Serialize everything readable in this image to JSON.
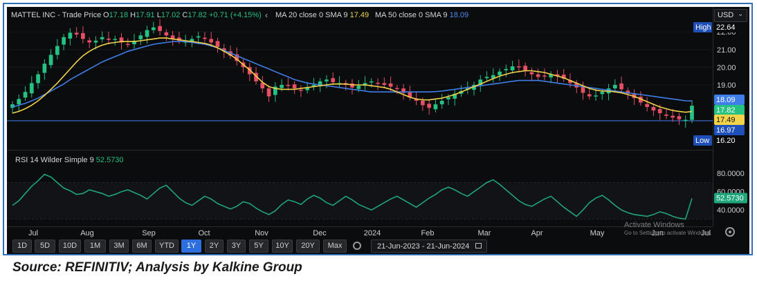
{
  "header": {
    "symbol": "MATTEL INC",
    "chart_label": "Trade Price",
    "ohlc": [
      {
        "key": "O",
        "value": "17.18"
      },
      {
        "key": "H",
        "value": "17.91"
      },
      {
        "key": "L",
        "value": "17.02"
      },
      {
        "key": "C",
        "value": "17.82"
      }
    ],
    "change": "+0.71 (+4.15%)",
    "ma20_label": "MA 20 close 0 SMA 9",
    "ma20_value": "17.49",
    "ma50_label": "MA 50 close 0 SMA 9",
    "ma50_value": "18.09",
    "currency": "USD"
  },
  "rsi_header": {
    "label": "RSI 14 Wilder Simple 9",
    "value": "52.5730"
  },
  "range_buttons": [
    "1D",
    "5D",
    "10D",
    "1M",
    "3M",
    "6M",
    "YTD",
    "1Y",
    "2Y",
    "3Y",
    "5Y",
    "10Y",
    "20Y",
    "Max"
  ],
  "active_range": "1Y",
  "date_range": "21-Jun-2023 - 21-Jun-2024",
  "watermark": {
    "line1": "Activate Windows",
    "line2": "Go to Settings to activate Windows."
  },
  "footer": "Source: REFINITIV; Analysis by Kalkine Group",
  "colors": {
    "bg": "#0b0c0e",
    "up": "#26c281",
    "down": "#e84f63",
    "ma20": "#f2d34a",
    "ma50": "#3f7ee8",
    "rsi": "#1fa67a",
    "active": "#2e6fe0"
  },
  "chart_data": [
    {
      "type": "candlestick",
      "title": "MATTEL INC - Trade Price",
      "x_labels": [
        "Jul",
        "Aug",
        "Sep",
        "Oct",
        "Nov",
        "Dec",
        "2024",
        "Feb",
        "Mar",
        "Apr",
        "May",
        "Jun",
        "Jul"
      ],
      "y_ticks": [
        22.0,
        21.0,
        20.0,
        19.0
      ],
      "ylim": [
        15.6,
        23.1
      ],
      "high": 22.64,
      "low": 16.2,
      "horizontal_level": 16.97,
      "price_tags": {
        "high": "22.64",
        "ma50": "18.09",
        "close": "17.82",
        "ma20": "17.49",
        "level": "16.97",
        "low": "16.20"
      },
      "close_series": [
        17.9,
        18.2,
        18.6,
        19.1,
        19.6,
        20.2,
        20.7,
        21.2,
        21.7,
        21.95,
        21.85,
        21.6,
        21.4,
        21.5,
        21.7,
        21.55,
        21.6,
        21.4,
        21.3,
        21.5,
        21.8,
        22.1,
        22.25,
        22.05,
        21.8,
        21.6,
        21.5,
        21.45,
        21.6,
        21.75,
        21.6,
        21.4,
        21.15,
        20.9,
        20.65,
        20.35,
        20.0,
        19.6,
        19.2,
        18.8,
        18.35,
        18.9,
        19.0,
        18.95,
        18.8,
        18.7,
        18.85,
        19.0,
        19.2,
        19.3,
        19.15,
        19.1,
        19.0,
        18.85,
        18.95,
        19.1,
        19.2,
        19.1,
        19.0,
        18.9,
        18.8,
        18.55,
        18.3,
        18.1,
        17.85,
        17.7,
        17.9,
        18.1,
        18.3,
        18.5,
        18.65,
        18.8,
        19.0,
        19.3,
        19.45,
        19.55,
        19.75,
        19.9,
        20.05,
        20.0,
        19.8,
        19.6,
        19.45,
        19.5,
        19.6,
        19.5,
        19.35,
        19.1,
        18.85,
        18.55,
        18.35,
        18.4,
        18.6,
        18.8,
        19.0,
        18.75,
        18.5,
        18.25,
        18.0,
        17.75,
        17.55,
        17.4,
        17.25,
        17.15,
        17.05,
        17.02,
        17.82
      ],
      "ma20_series": [
        17.4,
        17.5,
        17.65,
        17.85,
        18.1,
        18.4,
        18.75,
        19.1,
        19.5,
        19.9,
        20.3,
        20.65,
        20.9,
        21.1,
        21.25,
        21.35,
        21.4,
        21.45,
        21.45,
        21.45,
        21.5,
        21.55,
        21.6,
        21.65,
        21.65,
        21.6,
        21.55,
        21.5,
        21.45,
        21.4,
        21.35,
        21.25,
        21.1,
        20.9,
        20.7,
        20.45,
        20.15,
        19.85,
        19.5,
        19.15,
        18.9,
        18.8,
        18.75,
        18.75,
        18.75,
        18.8,
        18.85,
        18.9,
        18.95,
        19.0,
        19.05,
        19.05,
        19.05,
        19.0,
        19.0,
        19.0,
        18.95,
        18.9,
        18.85,
        18.75,
        18.6,
        18.45,
        18.3,
        18.2,
        18.15,
        18.15,
        18.2,
        18.25,
        18.35,
        18.45,
        18.6,
        18.75,
        18.9,
        19.05,
        19.2,
        19.35,
        19.5,
        19.6,
        19.7,
        19.75,
        19.8,
        19.8,
        19.75,
        19.7,
        19.6,
        19.5,
        19.4,
        19.25,
        19.1,
        18.95,
        18.8,
        18.7,
        18.65,
        18.65,
        18.6,
        18.55,
        18.45,
        18.35,
        18.2,
        18.05,
        17.9,
        17.75,
        17.65,
        17.55,
        17.5,
        17.45,
        17.49
      ],
      "ma50_series": [
        17.75,
        17.85,
        17.95,
        18.1,
        18.25,
        18.45,
        18.65,
        18.85,
        19.05,
        19.3,
        19.5,
        19.7,
        19.9,
        20.1,
        20.3,
        20.45,
        20.6,
        20.75,
        20.9,
        21.0,
        21.1,
        21.2,
        21.3,
        21.35,
        21.4,
        21.45,
        21.45,
        21.45,
        21.4,
        21.35,
        21.3,
        21.2,
        21.1,
        20.95,
        20.8,
        20.65,
        20.5,
        20.35,
        20.2,
        20.05,
        19.9,
        19.75,
        19.6,
        19.45,
        19.3,
        19.2,
        19.1,
        19.05,
        19.0,
        18.95,
        18.9,
        18.85,
        18.8,
        18.75,
        18.7,
        18.65,
        18.6,
        18.6,
        18.6,
        18.6,
        18.6,
        18.6,
        18.6,
        18.6,
        18.6,
        18.6,
        18.62,
        18.65,
        18.7,
        18.75,
        18.8,
        18.85,
        18.9,
        18.95,
        19.0,
        19.05,
        19.1,
        19.15,
        19.2,
        19.25,
        19.25,
        19.25,
        19.25,
        19.2,
        19.15,
        19.1,
        19.05,
        19.0,
        18.95,
        18.9,
        18.85,
        18.8,
        18.75,
        18.7,
        18.65,
        18.6,
        18.55,
        18.5,
        18.45,
        18.4,
        18.35,
        18.3,
        18.25,
        18.2,
        18.15,
        18.1,
        18.09
      ]
    },
    {
      "type": "line",
      "title": "RSI 14 Wilder Simple 9",
      "y_ticks": [
        80.0,
        60.0,
        40.0
      ],
      "ylim": [
        25,
        90
      ],
      "reference_lines": [
        70,
        30
      ],
      "current_value": 52.573,
      "values": [
        45,
        50,
        58,
        66,
        72,
        79,
        76,
        70,
        64,
        61,
        57,
        58,
        62,
        60,
        58,
        55,
        57,
        60,
        62,
        59,
        56,
        52,
        58,
        64,
        67,
        60,
        53,
        48,
        45,
        50,
        55,
        52,
        47,
        44,
        41,
        44,
        49,
        47,
        42,
        38,
        35,
        39,
        46,
        51,
        49,
        46,
        52,
        56,
        53,
        48,
        45,
        50,
        55,
        51,
        46,
        43,
        40,
        44,
        48,
        52,
        55,
        51,
        47,
        43,
        48,
        53,
        57,
        62,
        65,
        62,
        58,
        55,
        60,
        65,
        70,
        73,
        68,
        62,
        56,
        50,
        46,
        44,
        48,
        52,
        55,
        49,
        43,
        38,
        33,
        40,
        48,
        53,
        56,
        51,
        45,
        40,
        37,
        35,
        34,
        33,
        35,
        38,
        36,
        33,
        31,
        30,
        52.573
      ]
    }
  ]
}
